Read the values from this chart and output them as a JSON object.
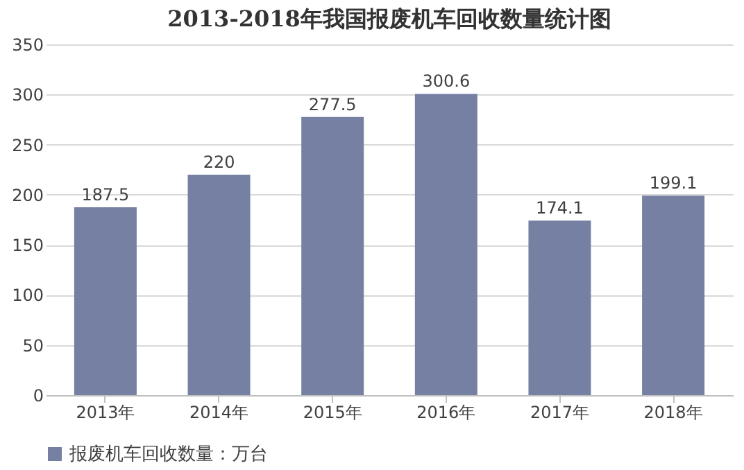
{
  "chart_data": {
    "type": "bar",
    "title": "2013-2018年我国报废机车回收数量统计图",
    "categories": [
      "2013年",
      "2014年",
      "2015年",
      "2016年",
      "2017年",
      "2018年"
    ],
    "series": [
      {
        "name": "报废机车回收数量：万台",
        "color": "#7580a3",
        "values": [
          187.5,
          220,
          277.5,
          300.6,
          174.1,
          199.1
        ]
      }
    ],
    "ylim": [
      0,
      350
    ],
    "yticks": [
      0,
      50,
      100,
      150,
      200,
      250,
      300,
      350
    ],
    "grid": "y",
    "legend": "bottom",
    "data_labels": true
  }
}
